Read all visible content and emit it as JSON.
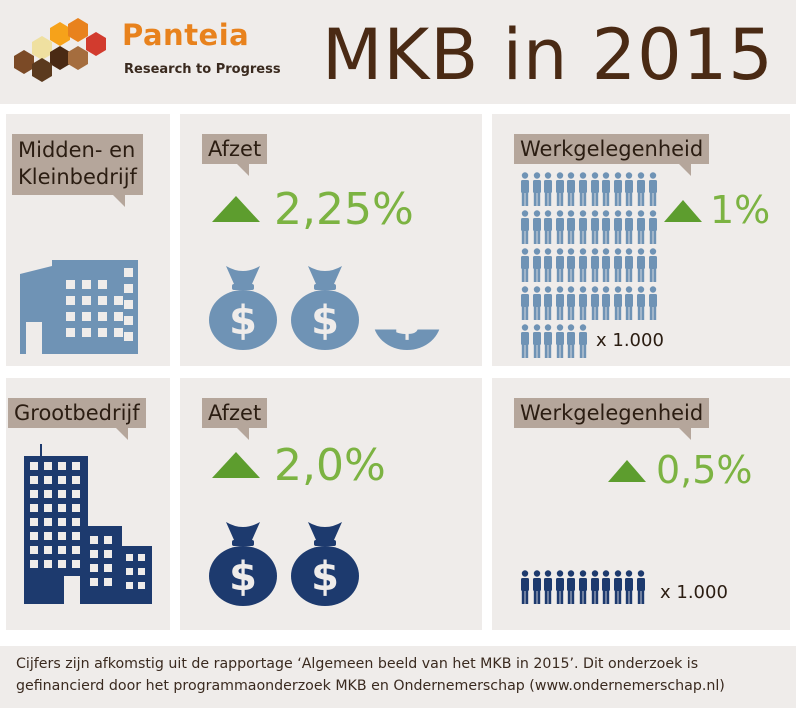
{
  "header": {
    "brand_name": "Panteia",
    "tagline": "Research to Progress",
    "title": "MKB in 2015",
    "logo_colors": [
      "#f6a21a",
      "#e8821d",
      "#d23b2e",
      "#7b4a26",
      "#4a2a14",
      "#efe0a0"
    ]
  },
  "colors": {
    "sme_blue": "#6f93b5",
    "large_blue": "#1d3a6e",
    "growth_green": "#7cb342",
    "tag_bg": "#b5a69b",
    "panel_bg": "#efecea"
  },
  "mkb": {
    "label": "Midden- en Kleinbedrijf",
    "label_line1": "Midden- en",
    "label_line2": "Kleinbedrijf",
    "building_icon": "small-office-building-icon",
    "afzet": {
      "label": "Afzet",
      "value": "2,25%",
      "bags_full": 2,
      "bag_fraction": 0.25,
      "icon": "money-bag-icon"
    },
    "werkgelegenheid": {
      "label": "Werkgelegenheid",
      "value": "1%",
      "multiplier": "x 1.000",
      "icon": "person-icon"
    }
  },
  "gb": {
    "label": "Grootbedrijf",
    "building_icon": "office-tower-icon",
    "afzet": {
      "label": "Afzet",
      "value": "2,0%",
      "bags_full": 2,
      "icon": "money-bag-icon"
    },
    "werkgelegenheid": {
      "label": "Werkgelegenheid",
      "value": "0,5%",
      "multiplier": "x 1.000",
      "icon": "person-icon"
    }
  },
  "footer": {
    "line1": "Cijfers zijn afkomstig uit de rapportage ‘Algemeen beeld van het MKB in 2015’. Dit onderzoek is",
    "line2": "gefinancierd door het programmaonderzoek MKB en Ondernemerschap (www.ondernemerschap.nl)"
  }
}
